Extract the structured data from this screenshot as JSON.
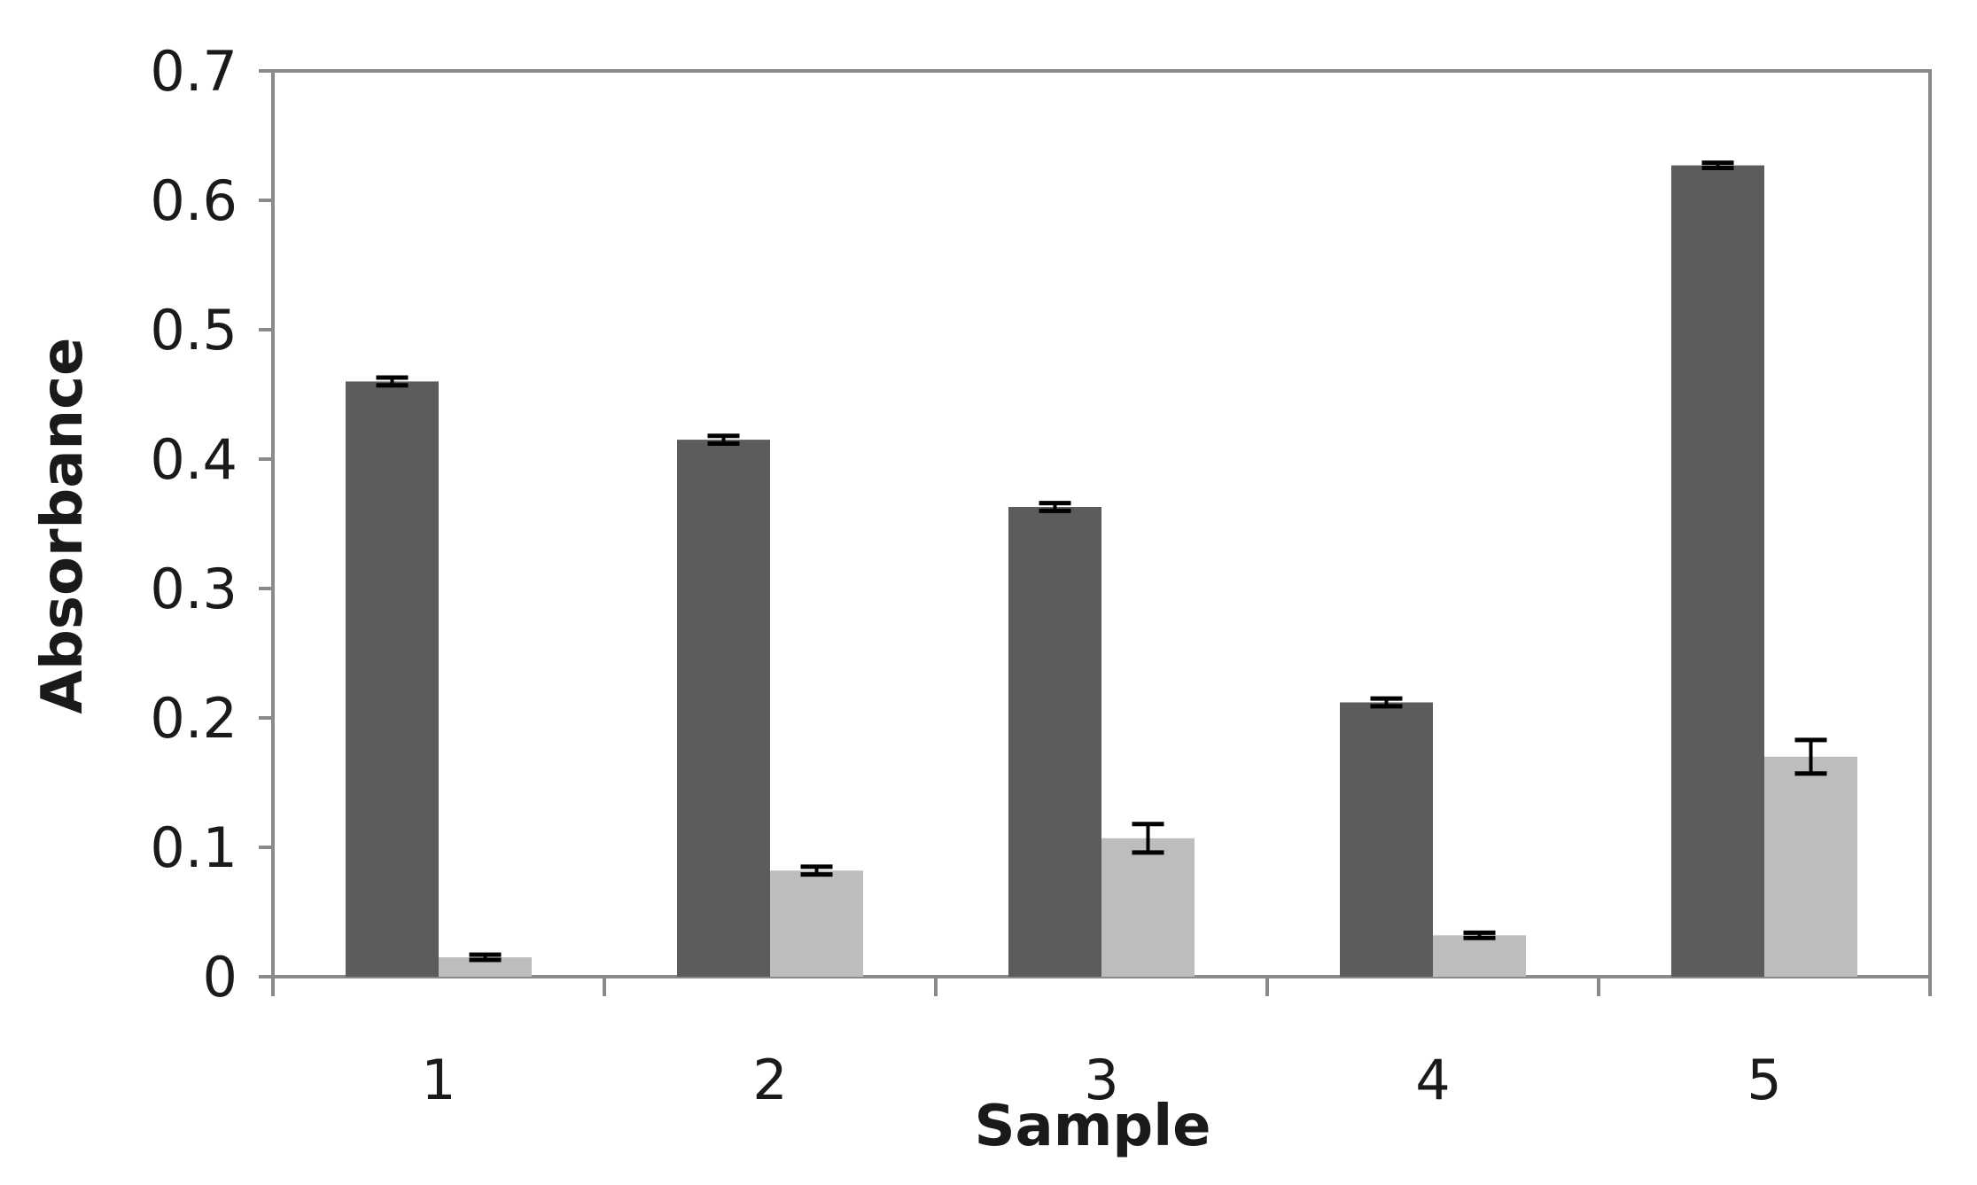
{
  "chart_data": {
    "type": "bar",
    "title": "",
    "xlabel": "Sample",
    "ylabel": "Absorbance",
    "categories": [
      "1",
      "2",
      "3",
      "4",
      "5"
    ],
    "ylim": [
      0,
      0.7
    ],
    "y_ticks": [
      0,
      0.1,
      0.2,
      0.3,
      0.4,
      0.5,
      0.6,
      0.7
    ],
    "y_tick_labels": [
      "0",
      "0.1",
      "0.2",
      "0.3",
      "0.4",
      "0.5",
      "0.6",
      "0.7"
    ],
    "grid": false,
    "legend": "none",
    "series": [
      {
        "values": [
          0.46,
          0.415,
          0.363,
          0.212,
          0.627
        ],
        "errors": [
          0.003,
          0.003,
          0.003,
          0.003,
          0.002
        ],
        "color": "#5c5c5c"
      },
      {
        "values": [
          0.015,
          0.082,
          0.107,
          0.032,
          0.17
        ],
        "errors": [
          0.002,
          0.003,
          0.011,
          0.002,
          0.013
        ],
        "color": "#bdbdbd"
      }
    ],
    "frame_color": "#8a8a8a"
  }
}
